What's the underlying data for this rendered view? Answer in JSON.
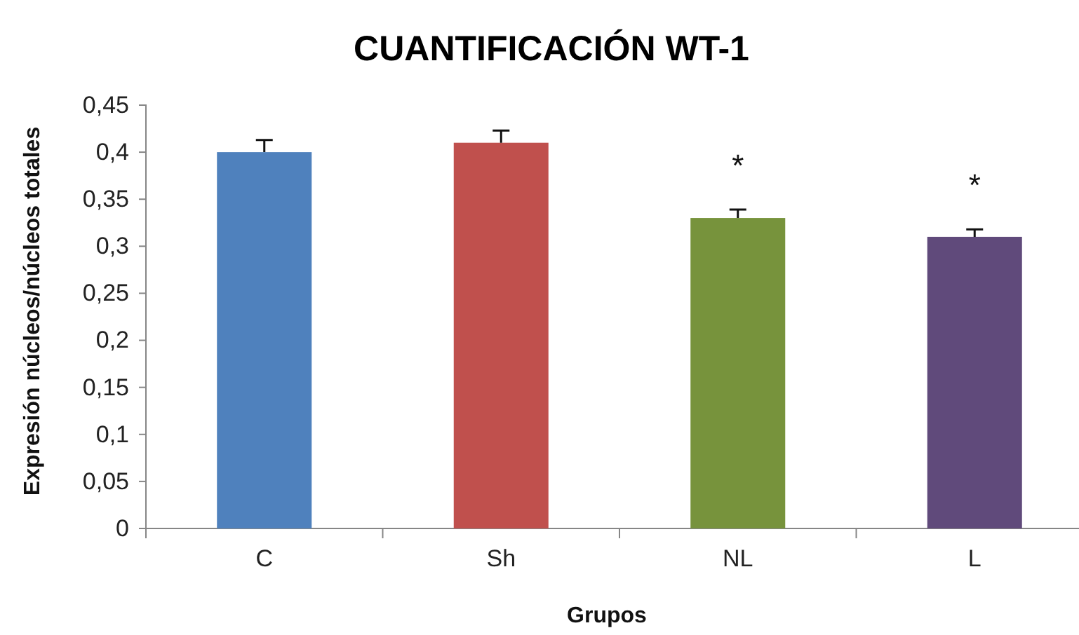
{
  "chart_data": {
    "type": "bar",
    "title": "CUANTIFICACIÓN WT-1",
    "xlabel": "Grupos",
    "ylabel": "Expresión núcleos/núcleos totales",
    "categories": [
      "C",
      "Sh",
      "NL",
      "L"
    ],
    "values": [
      0.4,
      0.41,
      0.33,
      0.31
    ],
    "colors": [
      "#4f81bd",
      "#c0504d",
      "#77933c",
      "#604a7b"
    ],
    "errors": [
      [
        0.4,
        0.413
      ],
      [
        0.41,
        0.423
      ],
      [
        0.33,
        0.339
      ],
      [
        0.31,
        0.318
      ]
    ],
    "ylim": [
      0,
      0.45
    ],
    "yticks": [
      {
        "value": 0,
        "label": "0"
      },
      {
        "value": 0.05,
        "label": "0,05"
      },
      {
        "value": 0.1,
        "label": "0,1"
      },
      {
        "value": 0.15,
        "label": "0,15"
      },
      {
        "value": 0.2,
        "label": "0,2"
      },
      {
        "value": 0.25,
        "label": "0,25"
      },
      {
        "value": 0.3,
        "label": "0,3"
      },
      {
        "value": 0.35,
        "label": "0,35"
      },
      {
        "value": 0.4,
        "label": "0,4"
      },
      {
        "value": 0.45,
        "label": "0,45"
      }
    ],
    "annotations": [
      "*",
      "*"
    ],
    "grid": false
  }
}
